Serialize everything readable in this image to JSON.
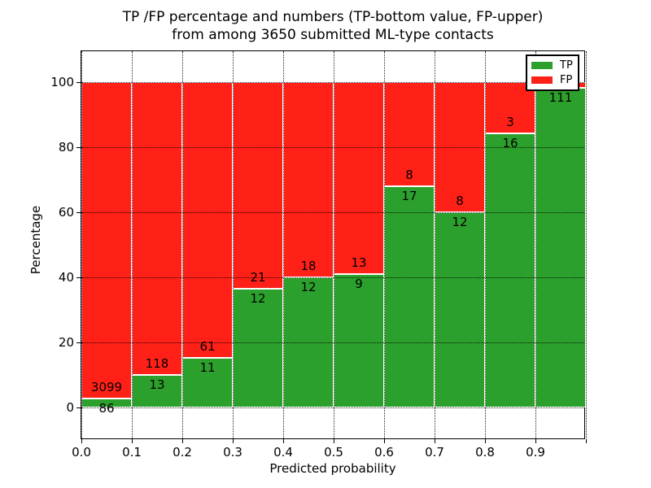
{
  "title": {
    "line1": "TP /FP percentage and numbers (TP-bottom value, FP-upper)",
    "line2": "from among 3650 submitted ML-type contacts"
  },
  "chart_data": {
    "type": "bar",
    "stacked": true,
    "title": "TP /FP percentage and numbers (TP-bottom value, FP-upper) from among 3650 submitted ML-type contacts",
    "xlabel": "Predicted probability",
    "ylabel": "Percentage",
    "xlim": [
      0.0,
      1.0
    ],
    "ylim": [
      -10,
      110
    ],
    "grid": true,
    "x_tick_labels": [
      "0.0",
      "0.1",
      "0.2",
      "0.3",
      "0.4",
      "0.5",
      "0.6",
      "0.7",
      "0.8",
      "0.9"
    ],
    "y_ticks": [
      0,
      20,
      40,
      60,
      80,
      100
    ],
    "bin_width": 0.1,
    "legend": {
      "position": "upper right",
      "entries": [
        {
          "label": "TP",
          "color": "#2ca02c"
        },
        {
          "label": "FP",
          "color": "#ff2017"
        }
      ]
    },
    "categories": [
      "0.0-0.1",
      "0.1-0.2",
      "0.2-0.3",
      "0.3-0.4",
      "0.4-0.5",
      "0.5-0.6",
      "0.6-0.7",
      "0.7-0.8",
      "0.8-0.9",
      "0.9-1.0"
    ],
    "series": [
      {
        "name": "TP",
        "counts": [
          86,
          13,
          11,
          12,
          12,
          9,
          17,
          12,
          16,
          111
        ]
      },
      {
        "name": "FP",
        "counts": [
          3099,
          118,
          61,
          21,
          18,
          13,
          8,
          8,
          3,
          null
        ]
      }
    ],
    "bars": [
      {
        "tp_label": "86",
        "fp_label": "3099",
        "tp_pct": 2.7
      },
      {
        "tp_label": "13",
        "fp_label": "118",
        "tp_pct": 9.9
      },
      {
        "tp_label": "11",
        "fp_label": "61",
        "tp_pct": 15.3
      },
      {
        "tp_label": "12",
        "fp_label": "21",
        "tp_pct": 36.4
      },
      {
        "tp_label": "12",
        "fp_label": "18",
        "tp_pct": 40.0
      },
      {
        "tp_label": "9",
        "fp_label": "13",
        "tp_pct": 40.9
      },
      {
        "tp_label": "17",
        "fp_label": "8",
        "tp_pct": 68.0
      },
      {
        "tp_label": "12",
        "fp_label": "8",
        "tp_pct": 60.0
      },
      {
        "tp_label": "16",
        "fp_label": "3",
        "tp_pct": 84.2
      },
      {
        "tp_label": "111",
        "fp_label": "",
        "tp_pct": 98.2
      }
    ]
  }
}
